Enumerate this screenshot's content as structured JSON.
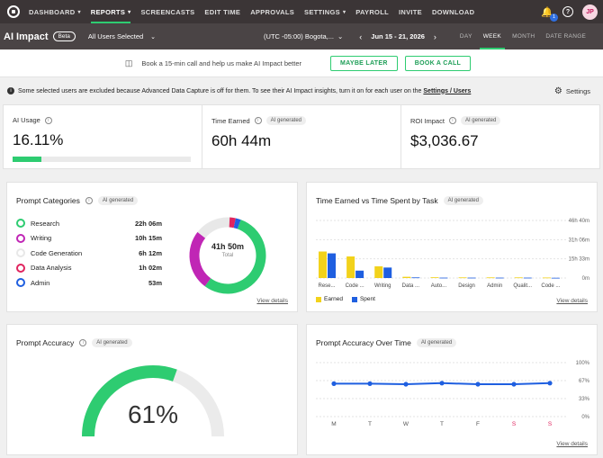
{
  "nav": {
    "items": [
      {
        "label": "DASHBOARD",
        "chevron": true
      },
      {
        "label": "REPORTS",
        "chevron": true,
        "active": true
      },
      {
        "label": "SCREENCASTS",
        "chevron": false
      },
      {
        "label": "EDIT TIME",
        "chevron": false
      },
      {
        "label": "APPROVALS",
        "chevron": false
      },
      {
        "label": "SETTINGS",
        "chevron": true
      },
      {
        "label": "PAYROLL",
        "chevron": false
      },
      {
        "label": "INVITE",
        "chevron": false
      },
      {
        "label": "DOWNLOAD",
        "chevron": false
      }
    ],
    "notification_count": "1",
    "avatar_initials": "JP"
  },
  "subheader": {
    "title": "AI Impact",
    "beta": "Beta",
    "users": "All Users Selected",
    "timezone": "(UTC -05:00) Bogota,...",
    "date_range": "Jun 15 - 21, 2026",
    "periods": [
      "DAY",
      "WEEK",
      "MONTH",
      "DATE RANGE"
    ],
    "active_period": "WEEK"
  },
  "banner": {
    "text": "Book a 15-min call and help us make AI Impact better",
    "later": "MAYBE LATER",
    "book": "BOOK A CALL"
  },
  "warning": {
    "text": "Some selected users are excluded because Advanced Data Capture is off for them. To see their AI Impact insights, turn it on for each user on the",
    "link": "Settings / Users",
    "settings": "Settings"
  },
  "stats": {
    "ai_usage_label": "AI Usage",
    "ai_usage_value": "16.11%",
    "ai_usage_fraction": 0.1611,
    "time_earned_label": "Time Earned",
    "time_earned_value": "60h 44m",
    "roi_label": "ROI Impact",
    "roi_value": "$3,036.67",
    "ai_tag": "AI generated"
  },
  "categories": {
    "title": "Prompt Categories",
    "items": [
      {
        "name": "Research",
        "value": "22h 06m",
        "color": "#2ecc71",
        "minutes": 1326
      },
      {
        "name": "Writing",
        "value": "10h 15m",
        "color": "#c026b5",
        "minutes": 615
      },
      {
        "name": "Code Generation",
        "value": "6h 12m",
        "color": "#e8e8e8",
        "minutes": 372
      },
      {
        "name": "Data Analysis",
        "value": "1h 02m",
        "color": "#e0245e",
        "minutes": 62
      },
      {
        "name": "Admin",
        "value": "53m",
        "color": "#1f5fe0",
        "minutes": 53
      }
    ],
    "total_value": "41h 50m",
    "total_label": "Total",
    "view_details": "View details"
  },
  "time_chart": {
    "title": "Time Earned vs Time Spent by Task",
    "legend_earned": "Earned",
    "legend_spent": "Spent",
    "earned_color": "#f2d21b",
    "spent_color": "#1f5fe0",
    "view_details": "View details"
  },
  "accuracy": {
    "title": "Prompt Accuracy",
    "value": "61%",
    "fraction": 0.61
  },
  "accuracy_chart": {
    "title": "Prompt Accuracy Over Time",
    "view_details": "View details"
  },
  "chart_data": [
    {
      "type": "bar",
      "title": "Time Earned vs Time Spent by Task",
      "categories": [
        "Rese...",
        "Code ...",
        "Writing",
        "Data ...",
        "Auto...",
        "Design",
        "Admin",
        "Qualit...",
        "Code ..."
      ],
      "series": [
        {
          "name": "Earned",
          "values": [
            21.5,
            17.5,
            9.5,
            1.0,
            0.6,
            0.5,
            0.5,
            0.5,
            0.4
          ]
        },
        {
          "name": "Spent",
          "values": [
            20.0,
            6.0,
            8.5,
            0.5,
            0.3,
            0.3,
            0.3,
            0.3,
            0.2
          ]
        }
      ],
      "yticks": [
        "46h 40m",
        "31h 06m",
        "15h 33m",
        "0m"
      ],
      "ylim": [
        0,
        46.67
      ]
    },
    {
      "type": "line",
      "title": "Prompt Accuracy Over Time",
      "categories": [
        "M",
        "T",
        "W",
        "T",
        "F",
        "S",
        "S"
      ],
      "weekend": [
        false,
        false,
        false,
        false,
        false,
        true,
        true
      ],
      "series": [
        {
          "values": [
            61,
            61,
            60,
            62,
            60,
            60,
            62
          ]
        }
      ],
      "yticks": [
        "100%",
        "67%",
        "33%",
        "0%"
      ],
      "ylim": [
        0,
        100
      ]
    }
  ]
}
